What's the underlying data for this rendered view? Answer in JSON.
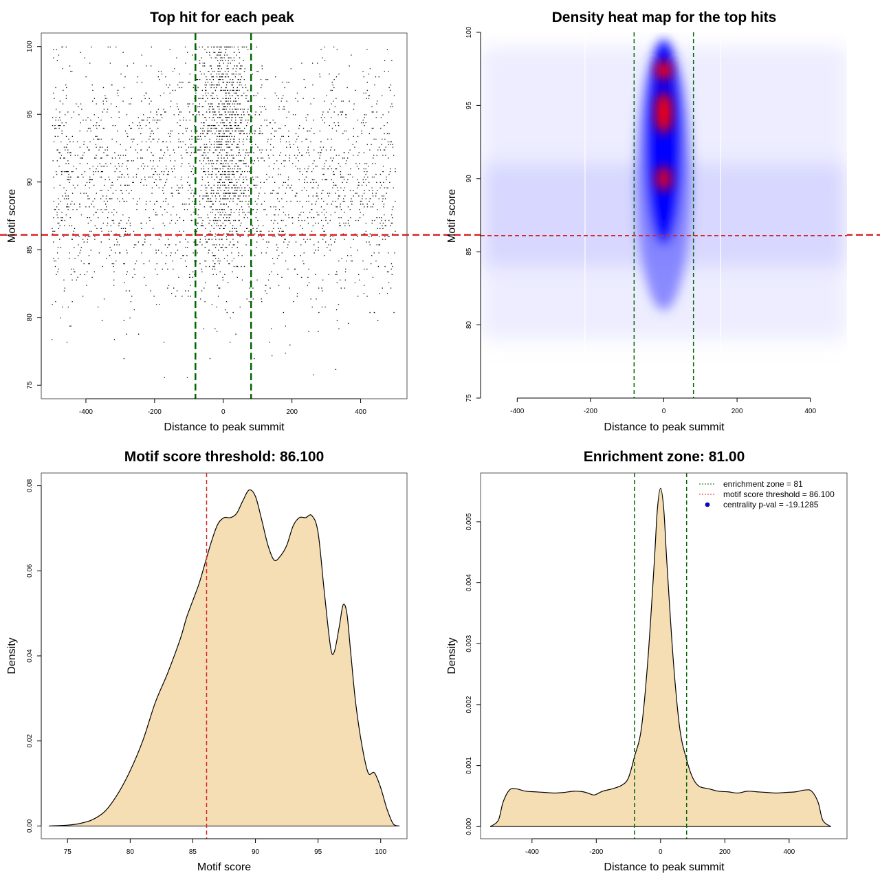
{
  "colors": {
    "threshold_line": "#d62728",
    "zone_line": "#006400",
    "density_fill": "#f5deb3",
    "points": "#000000",
    "heat_low": "#ffffff",
    "heat_mid": "#0000ff",
    "heat_high": "#ff0000",
    "legend_point": "#0000ff"
  },
  "chart_data": [
    {
      "id": "scatter",
      "type": "scatter",
      "title": "Top hit for each peak",
      "xlabel": "Distance to peak summit",
      "ylabel": "Motif score",
      "xlim": [
        -530,
        535
      ],
      "ylim": [
        74,
        101
      ],
      "xticks": [
        -400,
        -200,
        0,
        200,
        400
      ],
      "yticks": [
        75,
        80,
        85,
        90,
        95,
        100
      ],
      "vlines": [
        -81,
        81
      ],
      "hline": 86.1,
      "point_distribution": {
        "x_range": [
          -500,
          500
        ],
        "central_sd": 40,
        "central_fraction": 0.32,
        "score_peaks": [
          89.5,
          94.5,
          97.5
        ]
      }
    },
    {
      "id": "heatmap",
      "type": "heatmap",
      "title": "Density heat map for the top hits",
      "xlabel": "Distance to peak summit",
      "ylabel": "Motif score",
      "xlim": [
        -500,
        500
      ],
      "ylim": [
        75,
        100
      ],
      "xticks": [
        -400,
        -200,
        0,
        200,
        400
      ],
      "yticks": [
        75,
        80,
        85,
        90,
        95,
        100
      ],
      "vlines": [
        -81,
        81
      ],
      "hline": 86.1,
      "hotspots": [
        {
          "x": 0,
          "y": 97.4,
          "intensity": 1.0
        },
        {
          "x": 0,
          "y": 94.5,
          "intensity": 1.0
        },
        {
          "x": 0,
          "y": 90.0,
          "intensity": 0.85
        }
      ]
    },
    {
      "id": "score-density",
      "type": "area",
      "title": "Motif score threshold: 86.100",
      "xlabel": "Motif score",
      "ylabel": "Density",
      "xlim": [
        72.9,
        102.1
      ],
      "ylim": [
        -0.003,
        0.083
      ],
      "xticks": [
        75,
        80,
        85,
        90,
        95,
        100
      ],
      "yticks": [
        0.0,
        0.02,
        0.04,
        0.06,
        0.08
      ],
      "ytick_labels": [
        "0.00",
        "0.02",
        "0.04",
        "0.06",
        "0.08"
      ],
      "vline": 86.1,
      "x": [
        73.5,
        75,
        76,
        77,
        78,
        79,
        80,
        81,
        82,
        83,
        84,
        84.5,
        85,
        85.5,
        86,
        86.5,
        87,
        87.5,
        88,
        88.5,
        89,
        89.5,
        90,
        90.5,
        91,
        91.5,
        92,
        92.5,
        93,
        93.5,
        94,
        94.5,
        95,
        95.5,
        96,
        96.3,
        96.7,
        97,
        97.3,
        97.6,
        98,
        98.5,
        99,
        99.5,
        100,
        100.5,
        101,
        101.5
      ],
      "y": [
        0.0,
        0.0002,
        0.0006,
        0.0015,
        0.0035,
        0.0075,
        0.013,
        0.02,
        0.029,
        0.036,
        0.044,
        0.049,
        0.053,
        0.057,
        0.062,
        0.067,
        0.071,
        0.0725,
        0.0725,
        0.0735,
        0.0765,
        0.079,
        0.0775,
        0.072,
        0.066,
        0.0625,
        0.0635,
        0.066,
        0.0705,
        0.0725,
        0.0725,
        0.073,
        0.069,
        0.055,
        0.042,
        0.041,
        0.047,
        0.052,
        0.05,
        0.041,
        0.029,
        0.019,
        0.0125,
        0.0125,
        0.009,
        0.004,
        0.0005,
        0.0
      ]
    },
    {
      "id": "distance-density",
      "type": "area",
      "title": "Enrichment zone: 81.00",
      "xlabel": "Distance to peak summit",
      "ylabel": "Density",
      "xlim": [
        -560,
        580
      ],
      "ylim": [
        -0.0002,
        0.0058
      ],
      "xticks": [
        -400,
        -200,
        0,
        200,
        400
      ],
      "yticks": [
        0.0,
        0.001,
        0.002,
        0.003,
        0.004,
        0.005
      ],
      "ytick_labels": [
        "0.000",
        "0.001",
        "0.002",
        "0.003",
        "0.004",
        "0.005"
      ],
      "vlines": [
        -81,
        81
      ],
      "x": [
        -530,
        -505,
        -490,
        -470,
        -450,
        -420,
        -390,
        -360,
        -330,
        -300,
        -270,
        -240,
        -210,
        -200,
        -180,
        -150,
        -120,
        -100,
        -81,
        -60,
        -40,
        -20,
        -10,
        0,
        10,
        20,
        40,
        60,
        81,
        100,
        120,
        150,
        180,
        210,
        240,
        270,
        300,
        330,
        360,
        390,
        420,
        450,
        470,
        490,
        505,
        530
      ],
      "y": [
        0.0,
        0.0001,
        0.0004,
        0.0006,
        0.00062,
        0.00058,
        0.00057,
        0.00056,
        0.00055,
        0.00056,
        0.00058,
        0.00057,
        0.00052,
        0.00053,
        0.00058,
        0.00062,
        0.00068,
        0.0008,
        0.00115,
        0.0016,
        0.0027,
        0.0043,
        0.0052,
        0.00555,
        0.0052,
        0.0043,
        0.0027,
        0.0016,
        0.0011,
        0.0008,
        0.00066,
        0.00062,
        0.00058,
        0.00057,
        0.00055,
        0.00058,
        0.00057,
        0.00056,
        0.00055,
        0.00056,
        0.00057,
        0.0006,
        0.00058,
        0.0004,
        0.0001,
        0.0
      ],
      "legend": [
        {
          "label": "enrichment zone = 81",
          "style": "zone-dotted"
        },
        {
          "label": "motif score threshold = 86.100",
          "style": "threshold-dotted"
        },
        {
          "label": "centrality p-val = -19.1285",
          "style": "point"
        }
      ]
    }
  ]
}
